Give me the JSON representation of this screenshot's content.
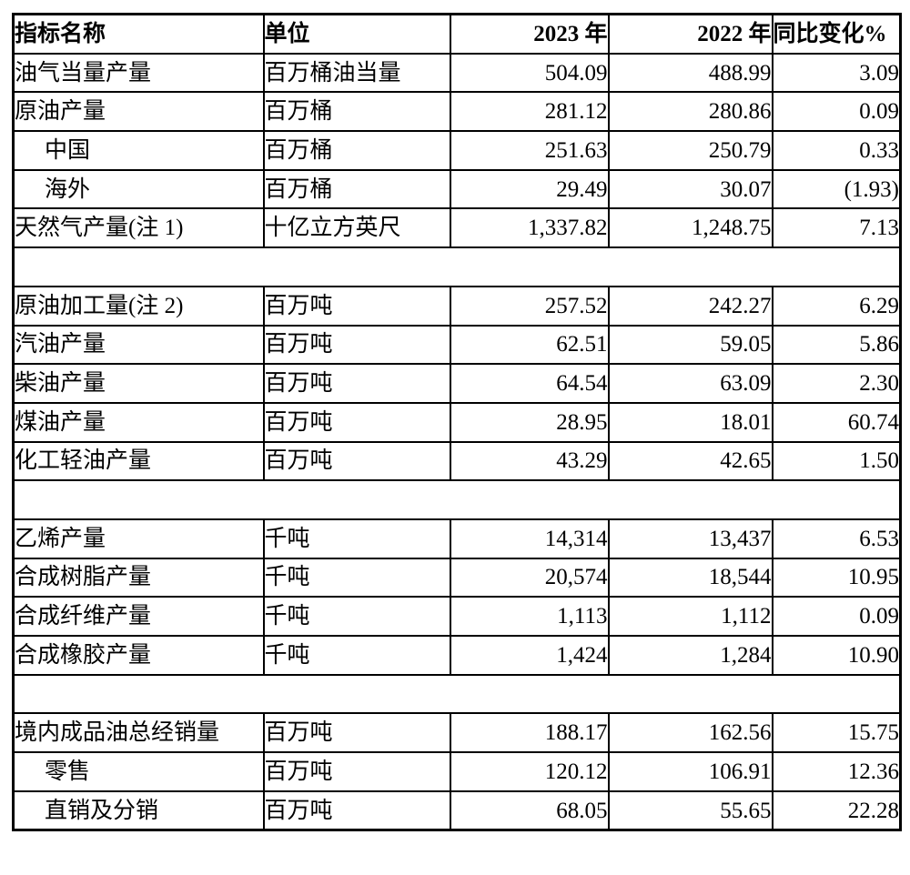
{
  "colors": {
    "background": "#ffffff",
    "text": "#000000",
    "border": "#000000"
  },
  "table": {
    "header": {
      "indicator": "指标名称",
      "unit": "单位",
      "year_2023": "2023 年",
      "year_2022": "2022 年",
      "yoy_change": "同比变化%"
    },
    "rows": [
      {
        "name": "油气当量产量",
        "indent": false,
        "unit": "百万桶油当量",
        "v2023": "504.09",
        "v2022": "488.99",
        "change": "3.09"
      },
      {
        "name": "原油产量",
        "indent": false,
        "unit": "百万桶",
        "v2023": "281.12",
        "v2022": "280.86",
        "change": "0.09"
      },
      {
        "name": "中国",
        "indent": true,
        "unit": "百万桶",
        "v2023": "251.63",
        "v2022": "250.79",
        "change": "0.33"
      },
      {
        "name": "海外",
        "indent": true,
        "unit": "百万桶",
        "v2023": "29.49",
        "v2022": "30.07",
        "change": "(1.93)"
      },
      {
        "name": "天然气产量(注 1)",
        "indent": false,
        "unit": "十亿立方英尺",
        "v2023": "1,337.82",
        "v2022": "1,248.75",
        "change": "7.13"
      },
      {
        "spacer": true
      },
      {
        "name": "原油加工量(注 2)",
        "indent": false,
        "unit": "百万吨",
        "v2023": "257.52",
        "v2022": "242.27",
        "change": "6.29"
      },
      {
        "name": "汽油产量",
        "indent": false,
        "unit": "百万吨",
        "v2023": "62.51",
        "v2022": "59.05",
        "change": "5.86"
      },
      {
        "name": "柴油产量",
        "indent": false,
        "unit": "百万吨",
        "v2023": "64.54",
        "v2022": "63.09",
        "change": "2.30"
      },
      {
        "name": "煤油产量",
        "indent": false,
        "unit": "百万吨",
        "v2023": "28.95",
        "v2022": "18.01",
        "change": "60.74"
      },
      {
        "name": "化工轻油产量",
        "indent": false,
        "unit": "百万吨",
        "v2023": "43.29",
        "v2022": "42.65",
        "change": "1.50"
      },
      {
        "spacer": true
      },
      {
        "name": "乙烯产量",
        "indent": false,
        "unit": "千吨",
        "v2023": "14,314",
        "v2022": "13,437",
        "change": "6.53"
      },
      {
        "name": "合成树脂产量",
        "indent": false,
        "unit": "千吨",
        "v2023": "20,574",
        "v2022": "18,544",
        "change": "10.95"
      },
      {
        "name": "合成纤维产量",
        "indent": false,
        "unit": "千吨",
        "v2023": "1,113",
        "v2022": "1,112",
        "change": "0.09"
      },
      {
        "name": "合成橡胶产量",
        "indent": false,
        "unit": "千吨",
        "v2023": "1,424",
        "v2022": "1,284",
        "change": "10.90"
      },
      {
        "spacer": true
      },
      {
        "name": "境内成品油总经销量",
        "indent": false,
        "unit": "百万吨",
        "v2023": "188.17",
        "v2022": "162.56",
        "change": "15.75"
      },
      {
        "name": "零售",
        "indent": true,
        "unit": "百万吨",
        "v2023": "120.12",
        "v2022": "106.91",
        "change": "12.36"
      },
      {
        "name": "直销及分销",
        "indent": true,
        "unit": "百万吨",
        "v2023": "68.05",
        "v2022": "55.65",
        "change": "22.28"
      }
    ]
  }
}
